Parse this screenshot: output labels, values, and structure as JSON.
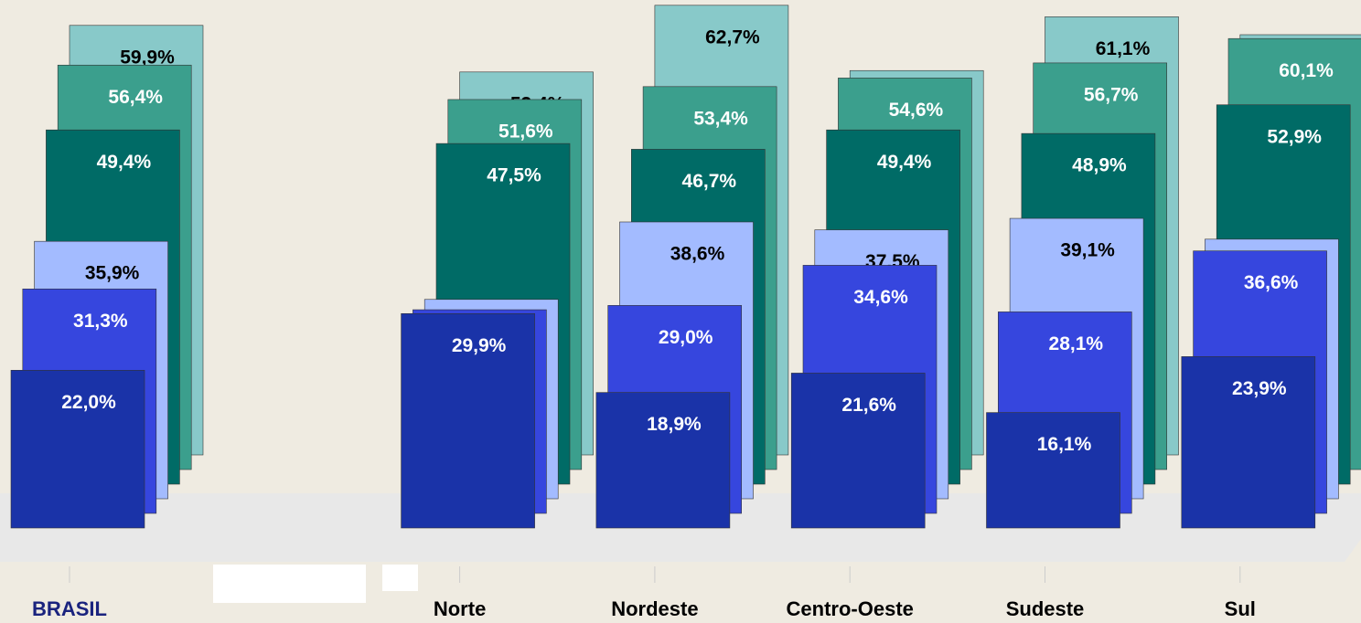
{
  "chart_data": {
    "type": "bar3d",
    "categories": [
      "BRASIL",
      null,
      "Norte",
      "Nordeste",
      "Centro-Oeste",
      "Sudeste",
      "Sul"
    ],
    "ylim": [
      0,
      70
    ],
    "series": [
      {
        "color": "#1a33a8",
        "label_color": "#ffffff",
        "values": [
          22.0,
          null,
          29.9,
          18.9,
          21.6,
          16.1,
          23.9
        ],
        "value_labels": [
          "22,0%",
          null,
          "29,9%",
          "18,9%",
          "21,6%",
          "16,1%",
          "23,9%"
        ]
      },
      {
        "color": "#3646de",
        "label_color": "#ffffff",
        "values": [
          31.3,
          null,
          28.4,
          29.0,
          34.6,
          28.1,
          36.6
        ],
        "value_labels": [
          "31,3%",
          null,
          null,
          "29,0%",
          "34,6%",
          "28,1%",
          "36,6%"
        ]
      },
      {
        "color": "#a3bbff",
        "label_color": "#000000",
        "values": [
          35.9,
          null,
          27.8,
          38.6,
          37.5,
          39.1,
          36.2
        ],
        "value_labels": [
          "35,9%",
          null,
          null,
          "38,6%",
          "37,5%",
          "39,1%",
          null
        ]
      },
      {
        "color": "#006b66",
        "label_color": "#ffffff",
        "values": [
          49.4,
          null,
          47.5,
          46.7,
          49.4,
          48.9,
          52.9
        ],
        "value_labels": [
          "49,4%",
          null,
          "47,5%",
          "46,7%",
          "49,4%",
          "48,9%",
          "52,9%"
        ]
      },
      {
        "color": "#3b9f8d",
        "label_color": "#ffffff",
        "values": [
          56.4,
          null,
          51.6,
          53.4,
          54.6,
          56.7,
          60.1
        ],
        "value_labels": [
          "56,4%",
          null,
          "51,6%",
          "53,4%",
          "54,6%",
          "56,7%",
          "60,1%"
        ]
      },
      {
        "color": "#88c9c9",
        "label_color": "#000000",
        "values": [
          59.9,
          null,
          53.4,
          62.7,
          53.6,
          61.1,
          58.6
        ],
        "value_labels": [
          "59,9%",
          null,
          "53,4%",
          "62,7%",
          null,
          "61,1%",
          null
        ]
      }
    ]
  }
}
